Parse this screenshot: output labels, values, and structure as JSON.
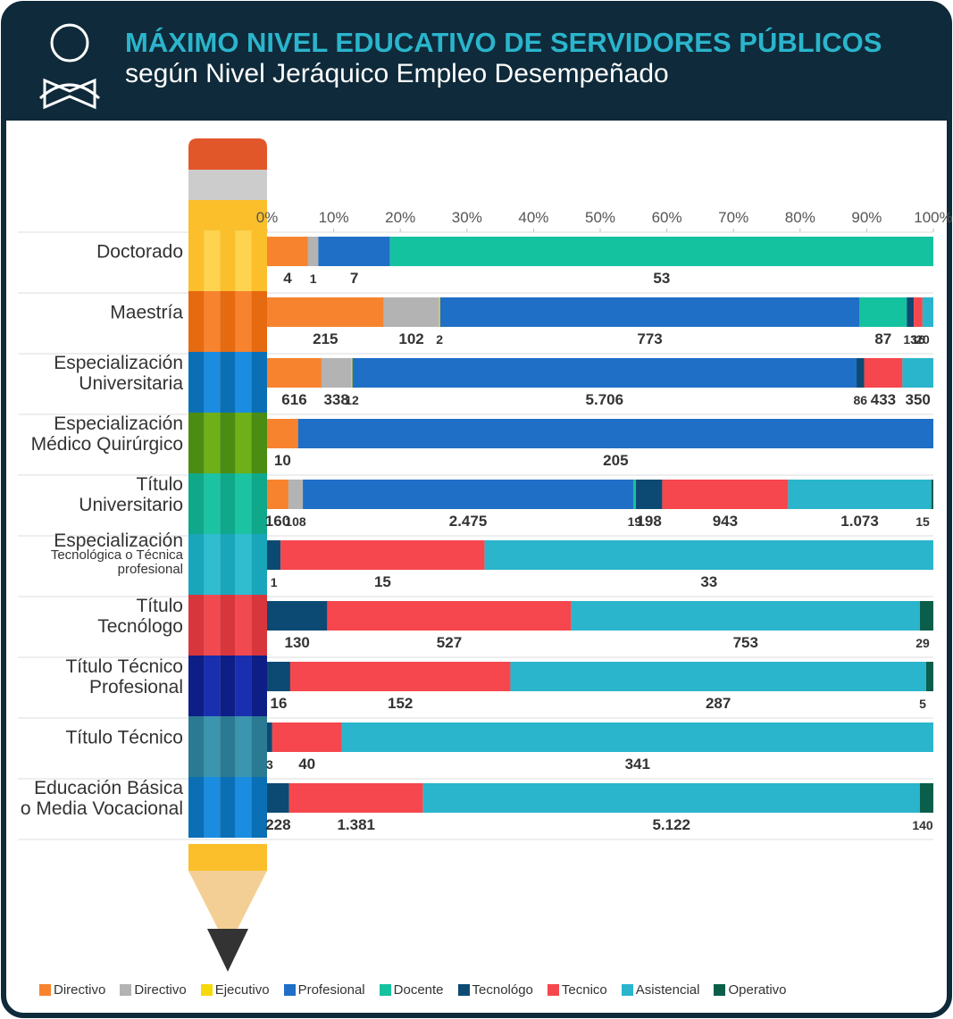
{
  "chart_data": {
    "type": "stacked_bar_100",
    "title": "MÁXIMO NIVEL EDUCATIVO DE SERVIDORES PÚBLICOS",
    "subtitle": "según Nivel Jeráquico Empleo Desempeñado",
    "categories": [
      "Doctorado",
      "Maestría",
      "Especialización\nUniversitaria",
      "Especialización\nMédico Quirúrgico",
      "Título\nUniversitario",
      "Especialización\nTecnológica o Técnica\nprofesional",
      "Título\nTecnólogo",
      "Título Técnico\nProfesional",
      "Título Técnico",
      "Educación Básica\no Media Vocacional"
    ],
    "xlim": [
      0,
      100
    ],
    "xticks": [
      {
        "value": 0,
        "label": "0%"
      },
      {
        "value": 10,
        "label": "10%"
      },
      {
        "value": 20,
        "label": "20%"
      },
      {
        "value": 30,
        "label": "30%"
      },
      {
        "value": 40,
        "label": "40%"
      },
      {
        "value": 50,
        "label": "50%"
      },
      {
        "value": 60,
        "label": "60%"
      },
      {
        "value": 70,
        "label": "70%"
      },
      {
        "value": 80,
        "label": "80%"
      },
      {
        "value": 90,
        "label": "90%"
      },
      {
        "value": 100,
        "label": "100%"
      }
    ],
    "series": [
      {
        "name": "Directivo",
        "color": "#f7832f",
        "values": [
          4,
          215,
          616,
          10,
          160,
          null,
          null,
          null,
          null,
          null
        ]
      },
      {
        "name": "Directivo",
        "color": "#b3b3b3",
        "values": [
          1,
          102,
          338,
          null,
          108,
          null,
          null,
          null,
          null,
          null
        ]
      },
      {
        "name": "Ejecutivo",
        "color": "#f5d90a",
        "values": [
          null,
          2,
          12,
          null,
          null,
          null,
          null,
          null,
          null,
          null
        ]
      },
      {
        "name": "Profesional",
        "color": "#1f6fc6",
        "values": [
          7,
          773,
          5706,
          205,
          2475,
          null,
          null,
          null,
          null,
          null
        ],
        "value_labels": [
          "7",
          "773",
          "5.706",
          "205",
          "2.475",
          null,
          null,
          null,
          null,
          null
        ]
      },
      {
        "name": "Docente",
        "color": "#14c2a0",
        "values": [
          53,
          87,
          null,
          null,
          19,
          null,
          null,
          null,
          null,
          null
        ]
      },
      {
        "name": "Tecnológo",
        "color": "#0d4a73",
        "values": [
          null,
          13,
          86,
          null,
          198,
          1,
          130,
          16,
          3,
          228
        ]
      },
      {
        "name": "Tecnico",
        "color": "#f5474d",
        "values": [
          null,
          16,
          433,
          null,
          943,
          15,
          527,
          152,
          40,
          1381
        ],
        "value_labels": [
          null,
          "16",
          "433",
          null,
          "943",
          "15",
          "527",
          "152",
          "40",
          "1.381"
        ]
      },
      {
        "name": "Asistencial",
        "color": "#2ab5cc",
        "values": [
          null,
          20,
          350,
          null,
          1073,
          33,
          753,
          287,
          341,
          5122
        ],
        "value_labels": [
          null,
          "20",
          "350",
          null,
          "1.073",
          "33",
          "753",
          "287",
          "341",
          "5.122"
        ]
      },
      {
        "name": "Operativo",
        "color": "#0b5e4a",
        "values": [
          null,
          null,
          null,
          null,
          15,
          null,
          29,
          5,
          null,
          140
        ]
      }
    ]
  }
}
